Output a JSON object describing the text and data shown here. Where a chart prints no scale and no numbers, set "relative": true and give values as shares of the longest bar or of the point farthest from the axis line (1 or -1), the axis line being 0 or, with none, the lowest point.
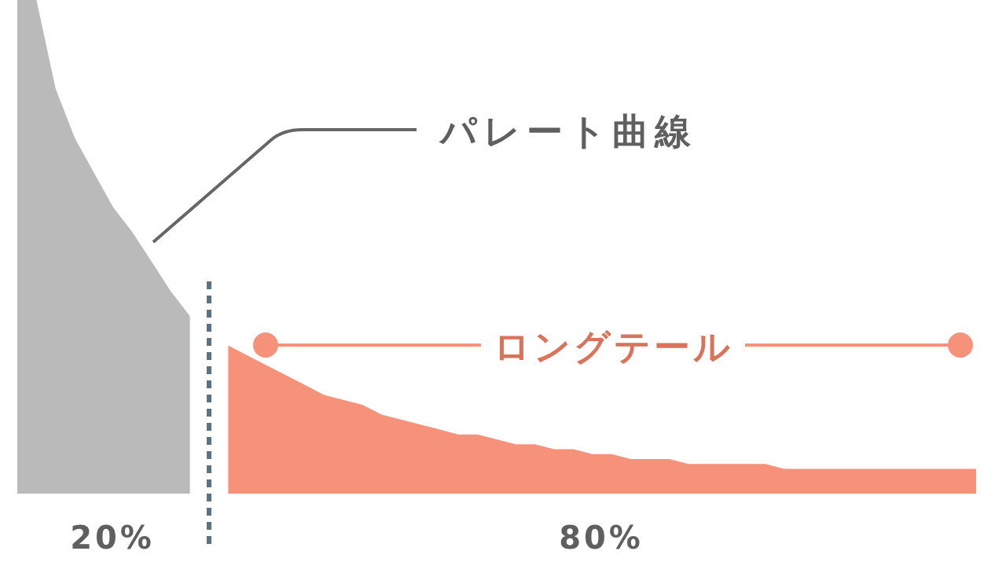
{
  "chart_data": {
    "type": "area",
    "relative": true,
    "categories": [
      null,
      null,
      null,
      null,
      null,
      null,
      null,
      null,
      null,
      null,
      null,
      null,
      null,
      null,
      null,
      null,
      null,
      null,
      null,
      null,
      null,
      null,
      null,
      null,
      null,
      null,
      null,
      null,
      null,
      null,
      null,
      null,
      null,
      null,
      null,
      null,
      null,
      null,
      null,
      null,
      null,
      null,
      null,
      null,
      null,
      null,
      null,
      null,
      null,
      null,
      null
    ],
    "series": [
      {
        "color": "#bababa",
        "values": [
          1,
          1,
          0.82,
          0.72,
          0.65,
          0.58,
          0.53,
          0.47,
          0.41,
          0.36,
          null,
          null,
          null,
          null,
          null,
          null,
          null,
          null,
          null,
          null,
          null,
          null,
          null,
          null,
          null,
          null,
          null,
          null,
          null,
          null,
          null,
          null,
          null,
          null,
          null,
          null,
          null,
          null,
          null,
          null,
          null,
          null,
          null,
          null,
          null,
          null,
          null,
          null,
          null,
          null,
          null
        ]
      },
      {
        "color": "#f59279",
        "values": [
          null,
          null,
          null,
          null,
          null,
          null,
          null,
          null,
          null,
          null,
          null,
          0.3,
          0.28,
          0.26,
          0.24,
          0.22,
          0.2,
          0.19,
          0.18,
          0.16,
          0.15,
          0.14,
          0.13,
          0.12,
          0.12,
          0.11,
          0.1,
          0.1,
          0.09,
          0.09,
          0.08,
          0.08,
          0.07,
          0.07,
          0.07,
          0.06,
          0.06,
          0.06,
          0.06,
          0.06,
          0.05,
          0.05,
          0.05,
          0.05,
          0.05,
          0.05,
          0.05,
          0.05,
          0.05,
          0.05,
          0.05
        ]
      }
    ],
    "annotations": [
      "パレート曲線",
      "ロングテール",
      "20%",
      "80%"
    ]
  }
}
